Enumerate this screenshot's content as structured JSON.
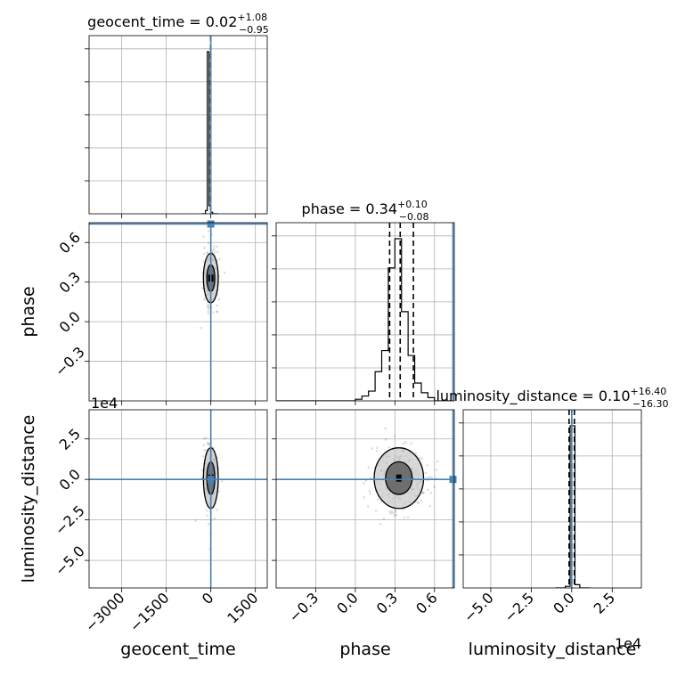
{
  "chart_data": {
    "type": "corner",
    "parameters": [
      "geocent_time",
      "phase",
      "luminosity_distance"
    ],
    "axis_labels": {
      "geocent_time": "geocent_time",
      "phase": "phase",
      "luminosity_distance": "luminosity_distance"
    },
    "titles": [
      {
        "param": "geocent_time",
        "text": "geocent_time = 0.02",
        "plus": "+1.08",
        "minus": "−0.95"
      },
      {
        "param": "phase",
        "text": "phase = 0.34",
        "plus": "+0.10",
        "minus": "−0.08"
      },
      {
        "param": "luminosity_distance",
        "text": "luminosity_distance = 0.10",
        "plus": "+16.40",
        "minus": "−16.30"
      }
    ],
    "ranges": {
      "geocent_time": [
        -4100,
        1900
      ],
      "phase": [
        -0.6,
        0.75
      ],
      "luminosity_distance": [
        -67000,
        43000
      ]
    },
    "ticks": {
      "geocent_time": [
        {
          "v": -3000,
          "label": "−3000"
        },
        {
          "v": -1500,
          "label": "−1500"
        },
        {
          "v": 0,
          "label": "0"
        },
        {
          "v": 1500,
          "label": "1500"
        }
      ],
      "phase": [
        {
          "v": -0.3,
          "label": "−0.3"
        },
        {
          "v": 0.0,
          "label": "0.0"
        },
        {
          "v": 0.3,
          "label": "0.3"
        },
        {
          "v": 0.6,
          "label": "0.6"
        }
      ],
      "luminosity_distance": [
        {
          "v": -50000,
          "label": "−5.0"
        },
        {
          "v": -25000,
          "label": "−2.5"
        },
        {
          "v": 0,
          "label": "0.0"
        },
        {
          "v": 25000,
          "label": "2.5"
        }
      ]
    },
    "offset_text": {
      "luminosity_distance": "1e4"
    },
    "quantiles": {
      "geocent_time": [
        -0.93,
        0.02,
        1.1
      ],
      "phase": [
        0.26,
        0.34,
        0.44
      ],
      "luminosity_distance": [
        -16.2,
        0.1,
        16.5
      ]
    },
    "truths": {
      "geocent_time": 0,
      "phase": 0.74,
      "luminosity_distance": 0
    },
    "histograms": {
      "geocent_time": {
        "edges": [
          -300,
          -240,
          -180,
          -120,
          -60,
          0,
          60,
          120,
          180,
          240
        ],
        "counts": [
          0,
          0,
          2,
          100,
          5,
          1,
          0,
          0,
          0
        ]
      },
      "phase": {
        "edges": [
          -0.6,
          -0.55,
          -0.5,
          -0.45,
          -0.4,
          -0.35,
          -0.3,
          -0.25,
          -0.2,
          -0.15,
          -0.1,
          -0.05,
          0.0,
          0.05,
          0.1,
          0.15,
          0.2,
          0.25,
          0.3,
          0.35,
          0.4,
          0.45,
          0.5,
          0.55,
          0.6,
          0.65,
          0.7,
          0.75
        ],
        "counts": [
          0,
          0,
          0,
          0,
          0,
          0,
          0,
          0,
          0,
          0,
          0,
          0,
          1,
          3,
          6,
          18,
          31,
          82,
          100,
          55,
          28,
          11,
          5,
          2,
          0,
          0,
          0
        ]
      },
      "luminosity_distance": {
        "edges": [
          -10000,
          -7000,
          -4000,
          -1000,
          2000,
          5000,
          8000,
          11000
        ],
        "counts": [
          0,
          0,
          1,
          100,
          2,
          0,
          0
        ]
      }
    },
    "grid": true
  }
}
